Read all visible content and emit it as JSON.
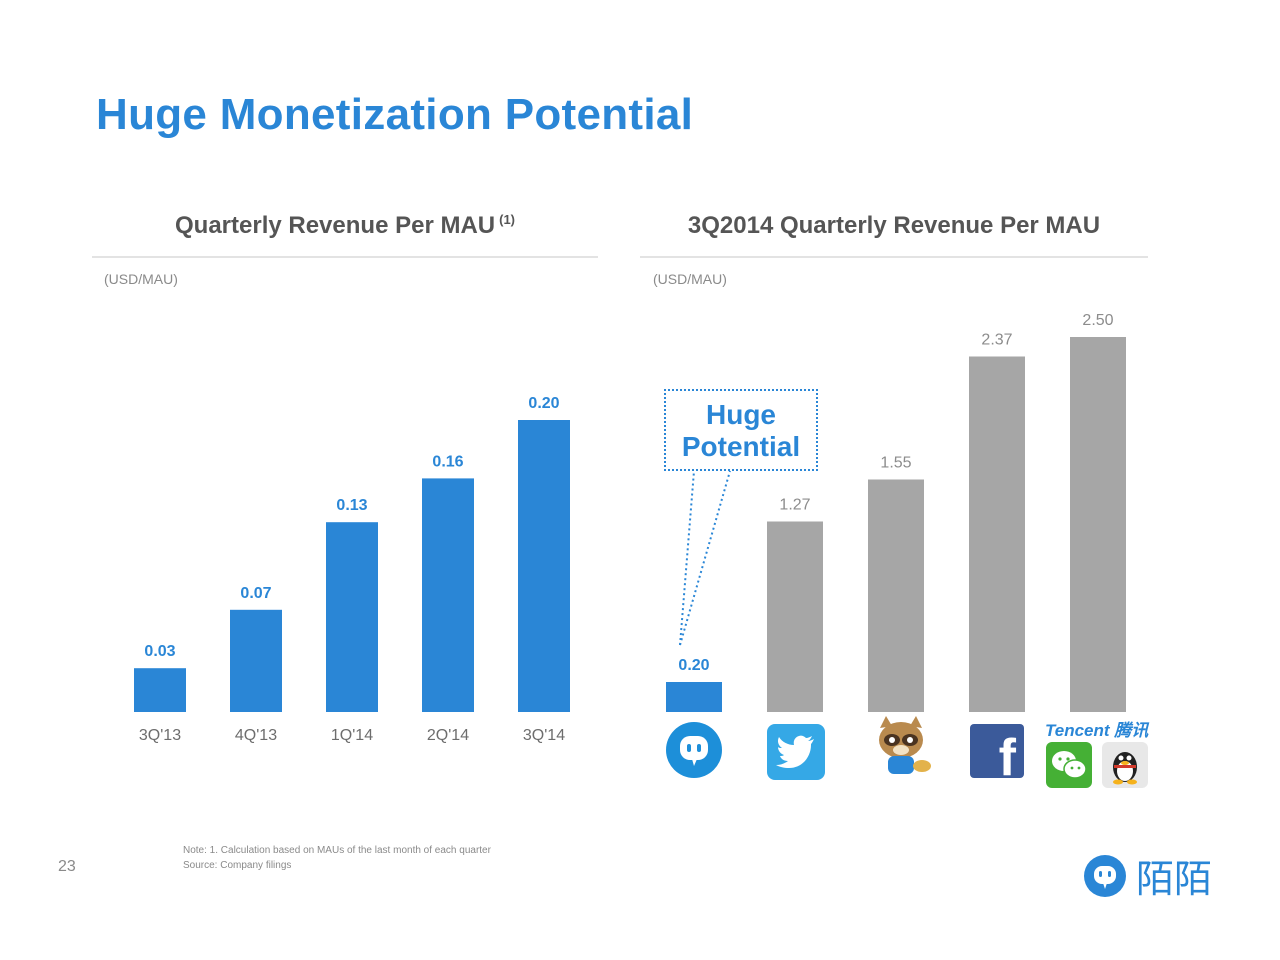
{
  "title": "Huge Monetization Potential",
  "left_panel": {
    "title": "Quarterly Revenue Per MAU",
    "footnote_marker": "(1)",
    "unit": "(USD/MAU)"
  },
  "right_panel": {
    "title": "3Q2014 Quarterly Revenue Per MAU",
    "unit": "(USD/MAU)",
    "callout": "Huge Potential",
    "brands": [
      "momo-icon",
      "twitter-icon",
      "yy-icon",
      "facebook-icon",
      "tencent-icon"
    ],
    "tencent_label": "Tencent 腾讯"
  },
  "chart_data": [
    {
      "type": "bar",
      "title": "Quarterly Revenue Per MAU",
      "ylabel": "(USD/MAU)",
      "categories": [
        "3Q'13",
        "4Q'13",
        "1Q'14",
        "2Q'14",
        "3Q'14"
      ],
      "values": [
        0.03,
        0.07,
        0.13,
        0.16,
        0.2
      ],
      "labels": [
        "0.03",
        "0.07",
        "0.13",
        "0.16",
        "0.20"
      ],
      "ylim": [
        0,
        0.25
      ],
      "color": "#2a86d6",
      "grid": false
    },
    {
      "type": "bar",
      "title": "3Q2014 Quarterly Revenue Per MAU",
      "ylabel": "(USD/MAU)",
      "categories": [
        "momo-icon",
        "twitter-icon",
        "yy-icon",
        "facebook-icon",
        "tencent-icon"
      ],
      "values": [
        0.2,
        1.27,
        1.55,
        2.37,
        2.5
      ],
      "labels": [
        "0.20",
        "1.27",
        "1.55",
        "2.37",
        "2.50"
      ],
      "ylim": [
        0,
        2.8
      ],
      "colors": [
        "#2a86d6",
        "#a6a6a6",
        "#a6a6a6",
        "#a6a6a6",
        "#a6a6a6"
      ],
      "grid": false
    }
  ],
  "footer": {
    "page_number": "23",
    "note_line1": "Note: 1. Calculation based on MAUs of the last month of each quarter",
    "note_line2": "Source: Company filings",
    "brand_text": "陌陌"
  }
}
